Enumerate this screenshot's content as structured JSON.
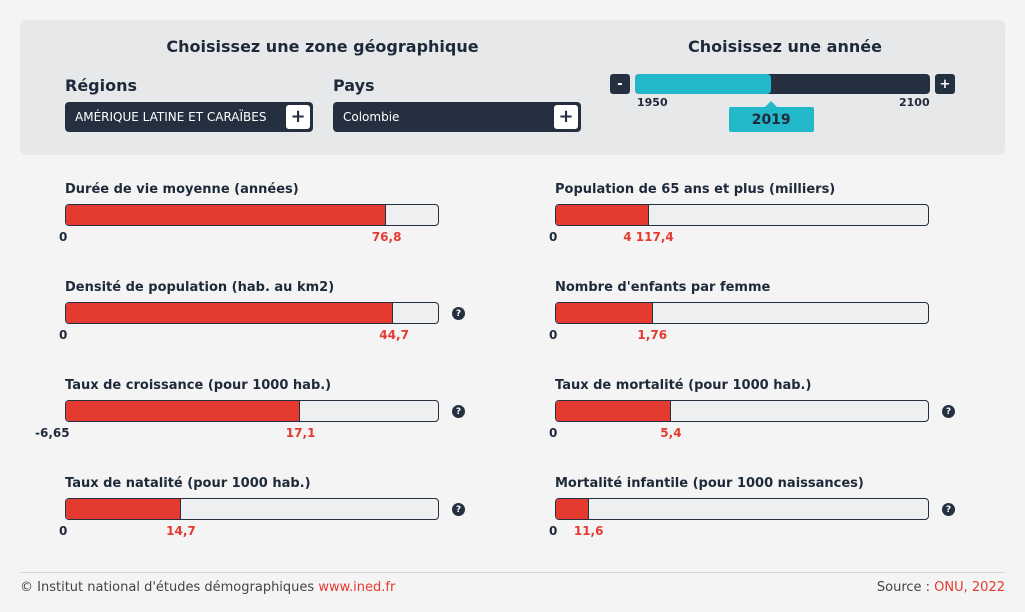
{
  "selector": {
    "zone_title": "Choisissez une zone géographique",
    "regions_label": "Régions",
    "region_value": "AMÉRIQUE LATINE ET CARAÏBES",
    "pays_label": "Pays",
    "pays_value": "Colombie",
    "plus": "+"
  },
  "year": {
    "title": "Choisissez une année",
    "minus": "-",
    "plus": "+",
    "start": "1950",
    "end": "2100",
    "current": "2019",
    "progress": 0.46
  },
  "indicators": [
    {
      "title": "Durée de vie moyenne (années)",
      "min": "0",
      "value": "76,8",
      "fraction": 0.86,
      "help": false
    },
    {
      "title": "Population de 65 ans et plus (milliers)",
      "min": "0",
      "value": "4 117,4",
      "fraction": 0.25,
      "help": false
    },
    {
      "title": "Densité de population (hab. au km2)",
      "min": "0",
      "value": "44,7",
      "fraction": 0.88,
      "help": true
    },
    {
      "title": "Nombre d'enfants par femme",
      "min": "0",
      "value": "1,76",
      "fraction": 0.26,
      "help": false
    },
    {
      "title": "Taux de croissance (pour 1000 hab.)",
      "min": "-6,65",
      "value": "17,1",
      "fraction": 0.63,
      "help": true
    },
    {
      "title": "Taux de mortalité (pour 1000 hab.)",
      "min": "0",
      "value": "5,4",
      "fraction": 0.31,
      "help": true
    },
    {
      "title": "Taux de natalité (pour 1000 hab.)",
      "min": "0",
      "value": "14,7",
      "fraction": 0.31,
      "help": true
    },
    {
      "title": "Mortalité infantile (pour 1000 naissances)",
      "min": "0",
      "value": "11,6",
      "fraction": 0.09,
      "help": true
    }
  ],
  "help_symbol": "?",
  "footer": {
    "copyright": "© Institut national d'études démographiques ",
    "link": "www.ined.fr",
    "source_label": "Source : ",
    "source_value": "ONU, 2022"
  },
  "colors": {
    "accent_red": "#e53a30",
    "accent_teal": "#22b8c9",
    "dark": "#24303f"
  }
}
